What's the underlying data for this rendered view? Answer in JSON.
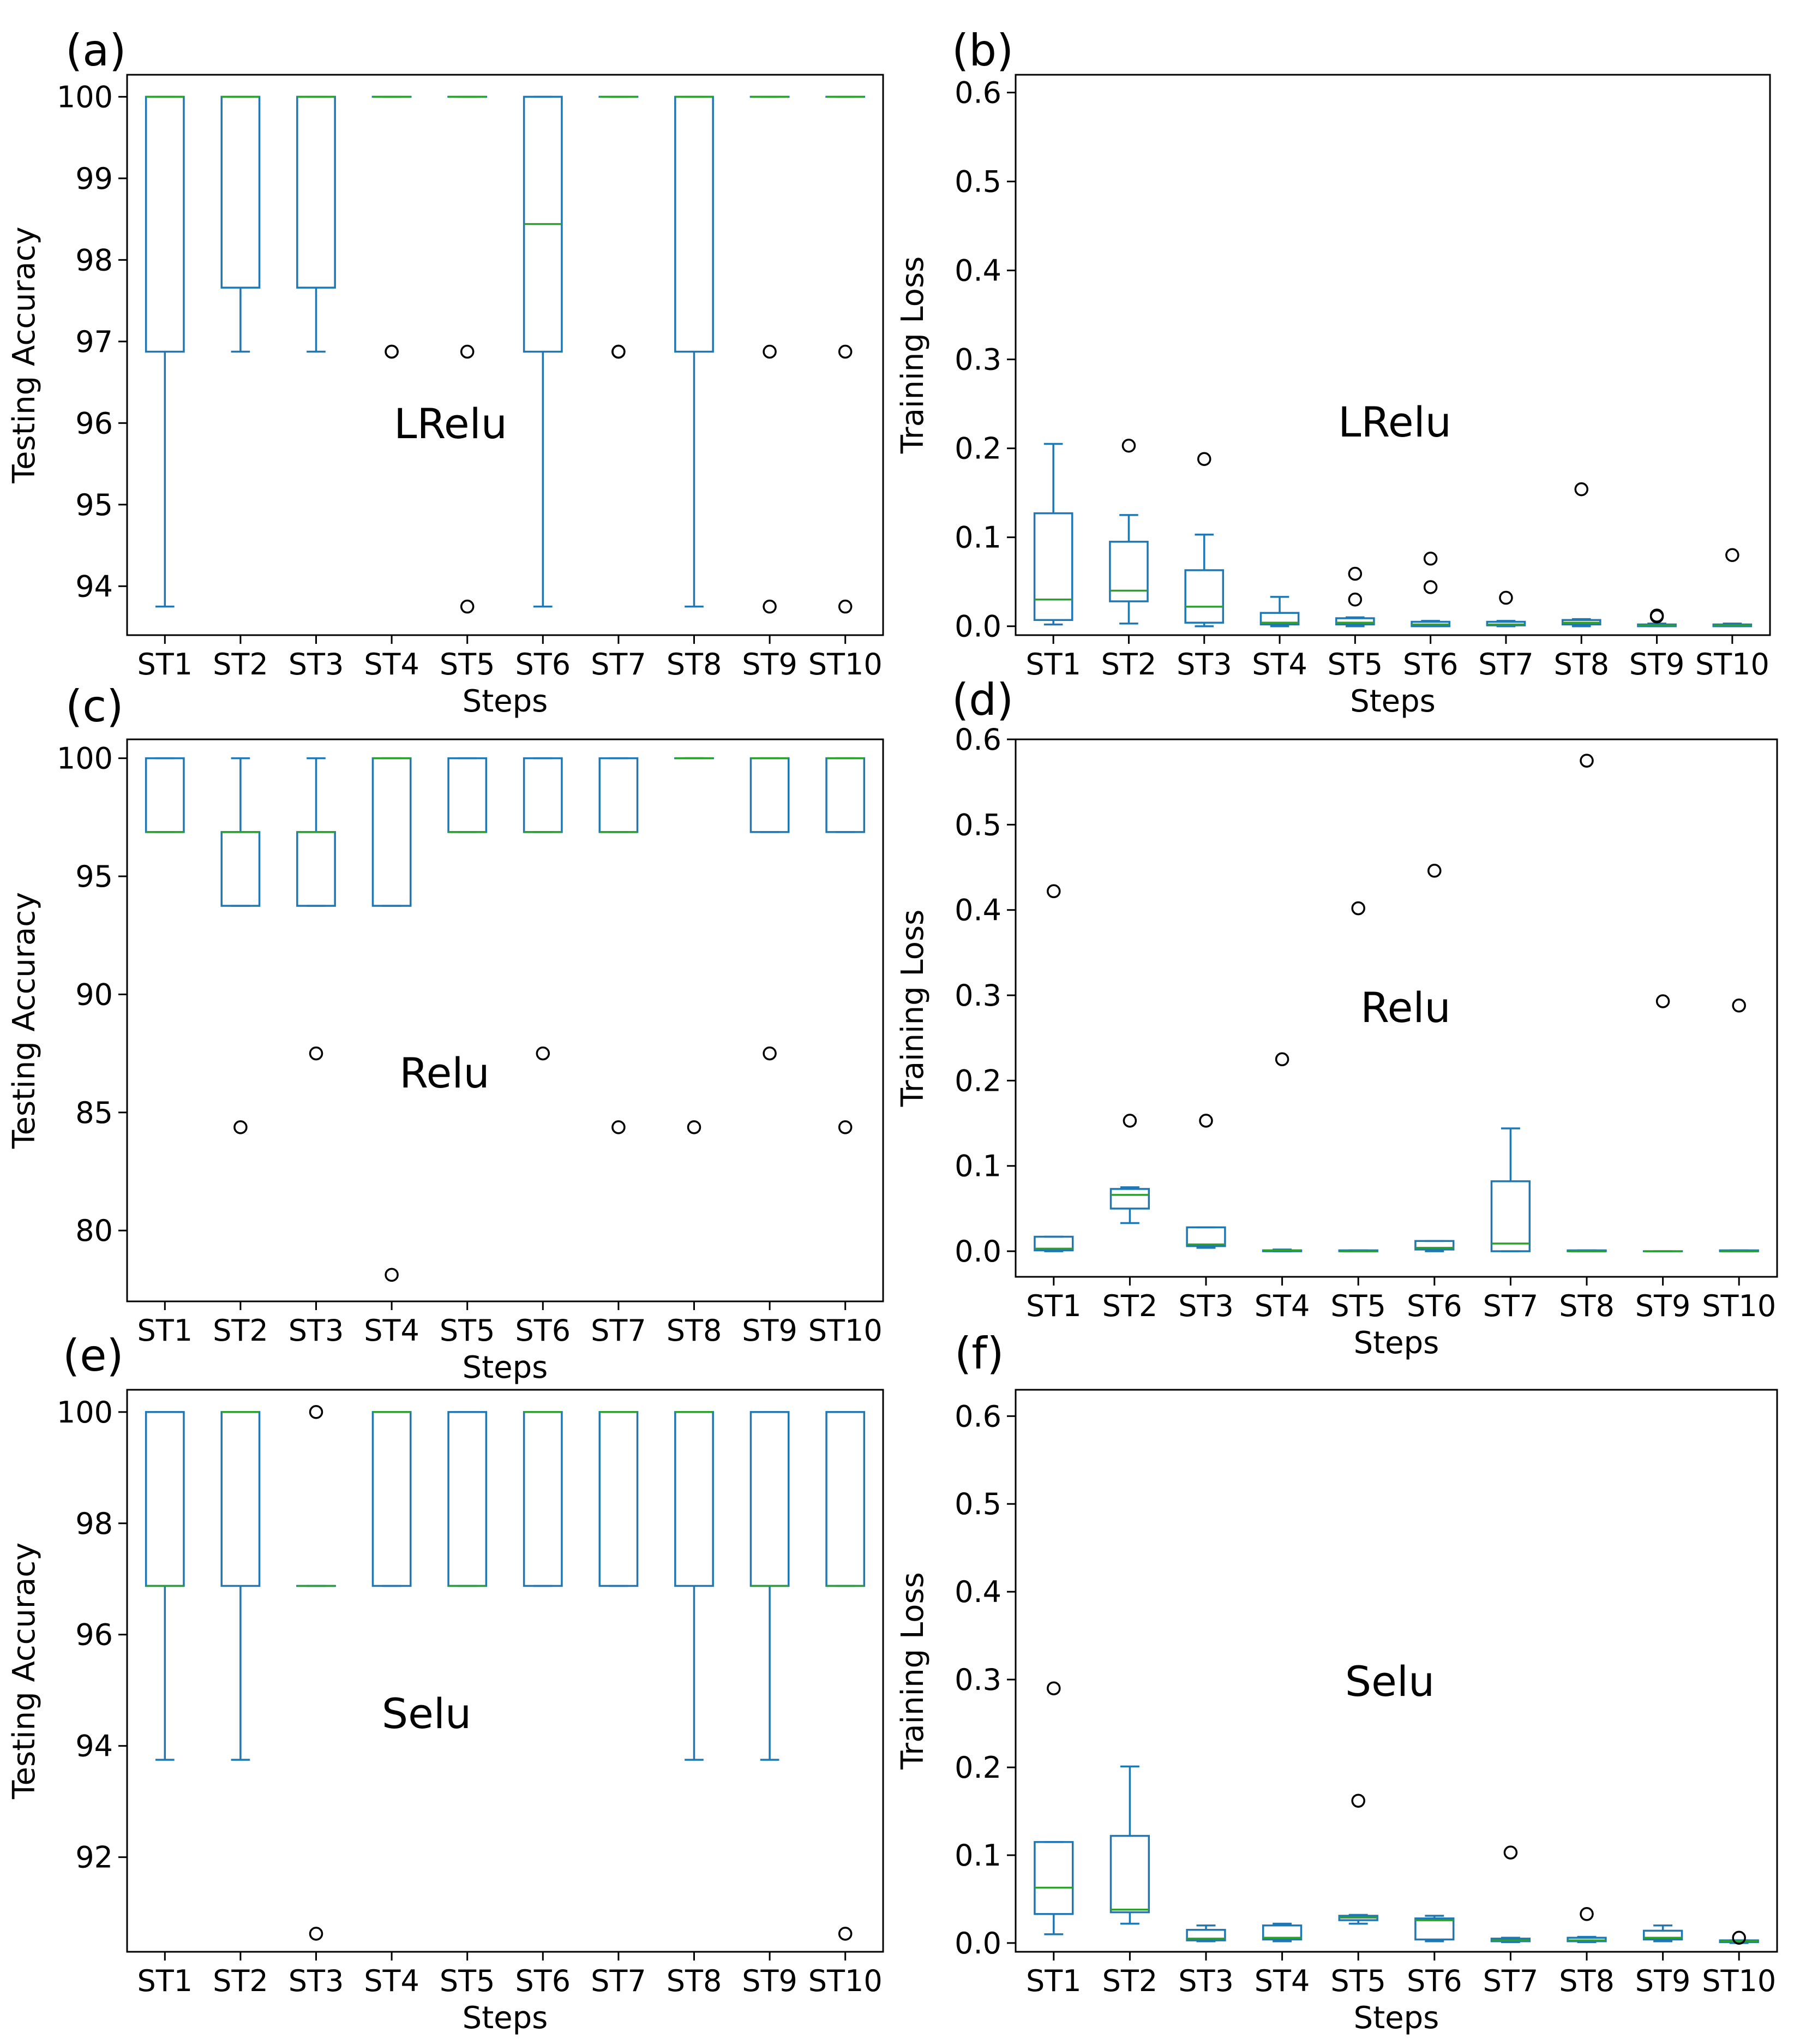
{
  "figure": {
    "common_x_label": "Steps",
    "colors": {
      "box": "#1f77b4",
      "median": "#2ca02c",
      "flier": "#000000",
      "frame": "#000000"
    }
  },
  "chart_data": [
    {
      "panel_label": "(a)",
      "type": "boxplot",
      "annotation": "LRelu",
      "xlabel": "Steps",
      "ylabel": "Testing Accuracy",
      "ylim": [
        93.4,
        100.27
      ],
      "yticks": [
        94,
        95,
        96,
        97,
        98,
        99,
        100
      ],
      "categories": [
        "ST1",
        "ST2",
        "ST3",
        "ST4",
        "ST5",
        "ST6",
        "ST7",
        "ST8",
        "ST9",
        "ST10"
      ],
      "boxes": [
        {
          "whislo": 93.75,
          "q1": 96.875,
          "med": 100,
          "q3": 100,
          "whishi": 100,
          "fliers": []
        },
        {
          "whislo": 96.875,
          "q1": 97.66,
          "med": 100,
          "q3": 100,
          "whishi": 100,
          "fliers": []
        },
        {
          "whislo": 96.875,
          "q1": 97.66,
          "med": 100,
          "q3": 100,
          "whishi": 100,
          "fliers": []
        },
        {
          "whislo": 100,
          "q1": 100,
          "med": 100,
          "q3": 100,
          "whishi": 100,
          "fliers": [
            96.875,
            96.875
          ]
        },
        {
          "whislo": 100,
          "q1": 100,
          "med": 100,
          "q3": 100,
          "whishi": 100,
          "fliers": [
            96.875,
            93.75
          ]
        },
        {
          "whislo": 93.75,
          "q1": 96.875,
          "med": 98.44,
          "q3": 100,
          "whishi": 100,
          "fliers": []
        },
        {
          "whislo": 100,
          "q1": 100,
          "med": 100,
          "q3": 100,
          "whishi": 100,
          "fliers": [
            96.875,
            96.875
          ]
        },
        {
          "whislo": 93.75,
          "q1": 96.875,
          "med": 100,
          "q3": 100,
          "whishi": 100,
          "fliers": []
        },
        {
          "whislo": 100,
          "q1": 100,
          "med": 100,
          "q3": 100,
          "whishi": 100,
          "fliers": [
            96.875,
            93.75
          ]
        },
        {
          "whislo": 100,
          "q1": 100,
          "med": 100,
          "q3": 100,
          "whishi": 100,
          "fliers": [
            96.875,
            93.75
          ]
        }
      ]
    },
    {
      "panel_label": "(b)",
      "type": "boxplot",
      "annotation": "LRelu",
      "xlabel": "Steps",
      "ylabel": "Training Loss",
      "ylim": [
        -0.01,
        0.62
      ],
      "yticks": [
        0.0,
        0.1,
        0.2,
        0.3,
        0.4,
        0.5,
        0.6
      ],
      "categories": [
        "ST1",
        "ST2",
        "ST3",
        "ST4",
        "ST5",
        "ST6",
        "ST7",
        "ST8",
        "ST9",
        "ST10"
      ],
      "boxes": [
        {
          "whislo": 0.002,
          "q1": 0.007,
          "med": 0.03,
          "q3": 0.127,
          "whishi": 0.205,
          "fliers": []
        },
        {
          "whislo": 0.003,
          "q1": 0.028,
          "med": 0.04,
          "q3": 0.095,
          "whishi": 0.125,
          "fliers": [
            0.203
          ]
        },
        {
          "whislo": 0.0,
          "q1": 0.004,
          "med": 0.022,
          "q3": 0.063,
          "whishi": 0.103,
          "fliers": [
            0.188
          ]
        },
        {
          "whislo": 0.0,
          "q1": 0.002,
          "med": 0.004,
          "q3": 0.015,
          "whishi": 0.033,
          "fliers": []
        },
        {
          "whislo": 0.0,
          "q1": 0.002,
          "med": 0.004,
          "q3": 0.009,
          "whishi": 0.01,
          "fliers": [
            0.059,
            0.03
          ]
        },
        {
          "whislo": 0.0,
          "q1": 0.0,
          "med": 0.002,
          "q3": 0.005,
          "whishi": 0.006,
          "fliers": [
            0.076,
            0.044
          ]
        },
        {
          "whislo": 0.0,
          "q1": 0.001,
          "med": 0.002,
          "q3": 0.005,
          "whishi": 0.006,
          "fliers": [
            0.032
          ]
        },
        {
          "whislo": 0.0,
          "q1": 0.002,
          "med": 0.004,
          "q3": 0.007,
          "whishi": 0.008,
          "fliers": [
            0.154
          ]
        },
        {
          "whislo": 0.0,
          "q1": 0.0,
          "med": 0.001,
          "q3": 0.002,
          "whishi": 0.003,
          "fliers": [
            0.012,
            0.011
          ]
        },
        {
          "whislo": 0.0,
          "q1": 0.0,
          "med": 0.001,
          "q3": 0.002,
          "whishi": 0.003,
          "fliers": [
            0.08
          ]
        }
      ]
    },
    {
      "panel_label": "(c)",
      "type": "boxplot",
      "annotation": "Relu",
      "xlabel": "Steps",
      "ylabel": "Testing Accuracy",
      "ylim": [
        77.0,
        100.8
      ],
      "yticks": [
        80,
        85,
        90,
        95,
        100
      ],
      "categories": [
        "ST1",
        "ST2",
        "ST3",
        "ST4",
        "ST5",
        "ST6",
        "ST7",
        "ST8",
        "ST9",
        "ST10"
      ],
      "boxes": [
        {
          "whislo": 96.875,
          "q1": 96.875,
          "med": 96.875,
          "q3": 100,
          "whishi": 100,
          "fliers": []
        },
        {
          "whislo": 93.75,
          "q1": 93.75,
          "med": 96.875,
          "q3": 96.875,
          "whishi": 100,
          "fliers": [
            84.375
          ]
        },
        {
          "whislo": 93.75,
          "q1": 93.75,
          "med": 96.875,
          "q3": 96.875,
          "whishi": 100,
          "fliers": [
            87.5
          ]
        },
        {
          "whislo": 93.75,
          "q1": 93.75,
          "med": 100,
          "q3": 100,
          "whishi": 100,
          "fliers": [
            78.125
          ]
        },
        {
          "whislo": 96.875,
          "q1": 96.875,
          "med": 96.875,
          "q3": 100,
          "whishi": 100,
          "fliers": []
        },
        {
          "whislo": 96.875,
          "q1": 96.875,
          "med": 96.875,
          "q3": 100,
          "whishi": 100,
          "fliers": [
            87.5
          ]
        },
        {
          "whislo": 96.875,
          "q1": 96.875,
          "med": 96.875,
          "q3": 100,
          "whishi": 100,
          "fliers": [
            84.375
          ]
        },
        {
          "whislo": 100,
          "q1": 100,
          "med": 100,
          "q3": 100,
          "whishi": 100,
          "fliers": [
            84.375
          ]
        },
        {
          "whislo": 96.875,
          "q1": 96.875,
          "med": 100,
          "q3": 100,
          "whishi": 100,
          "fliers": [
            87.5
          ]
        },
        {
          "whislo": 96.875,
          "q1": 96.875,
          "med": 100,
          "q3": 100,
          "whishi": 100,
          "fliers": [
            84.375
          ]
        }
      ]
    },
    {
      "panel_label": "(d)",
      "type": "boxplot",
      "annotation": "Relu",
      "xlabel": "Steps",
      "ylabel": "Training Loss",
      "ylim": [
        -0.03,
        0.6
      ],
      "yticks": [
        0.0,
        0.1,
        0.2,
        0.3,
        0.4,
        0.5,
        0.6
      ],
      "categories": [
        "ST1",
        "ST2",
        "ST3",
        "ST4",
        "ST5",
        "ST6",
        "ST7",
        "ST8",
        "ST9",
        "ST10"
      ],
      "boxes": [
        {
          "whislo": 0.0,
          "q1": 0.001,
          "med": 0.003,
          "q3": 0.017,
          "whishi": 0.017,
          "fliers": [
            0.422
          ]
        },
        {
          "whislo": 0.033,
          "q1": 0.05,
          "med": 0.066,
          "q3": 0.073,
          "whishi": 0.075,
          "fliers": [
            0.153
          ]
        },
        {
          "whislo": 0.004,
          "q1": 0.006,
          "med": 0.008,
          "q3": 0.028,
          "whishi": 0.028,
          "fliers": [
            0.153
          ]
        },
        {
          "whislo": 0.0,
          "q1": 0.0,
          "med": 0.001,
          "q3": 0.001,
          "whishi": 0.002,
          "fliers": [
            0.225
          ]
        },
        {
          "whislo": 0.0,
          "q1": 0.0,
          "med": 0.0,
          "q3": 0.001,
          "whishi": 0.001,
          "fliers": [
            0.402
          ]
        },
        {
          "whislo": 0.0,
          "q1": 0.002,
          "med": 0.004,
          "q3": 0.012,
          "whishi": 0.012,
          "fliers": [
            0.446
          ]
        },
        {
          "whislo": 0.0,
          "q1": 0.0,
          "med": 0.009,
          "q3": 0.082,
          "whishi": 0.144,
          "fliers": []
        },
        {
          "whislo": 0.0,
          "q1": 0.0,
          "med": 0.0,
          "q3": 0.001,
          "whishi": 0.001,
          "fliers": [
            0.575
          ]
        },
        {
          "whislo": 0.0,
          "q1": 0.0,
          "med": 0.0,
          "q3": 0.0,
          "whishi": 0.0,
          "fliers": [
            0.293
          ]
        },
        {
          "whislo": 0.0,
          "q1": 0.0,
          "med": 0.0,
          "q3": 0.001,
          "whishi": 0.001,
          "fliers": [
            0.288
          ]
        }
      ]
    },
    {
      "panel_label": "(e)",
      "type": "boxplot",
      "annotation": "Selu",
      "xlabel": "Steps",
      "ylabel": "Testing Accuracy",
      "ylim": [
        90.3,
        100.4
      ],
      "yticks": [
        92,
        94,
        96,
        98,
        100
      ],
      "categories": [
        "ST1",
        "ST2",
        "ST3",
        "ST4",
        "ST5",
        "ST6",
        "ST7",
        "ST8",
        "ST9",
        "ST10"
      ],
      "boxes": [
        {
          "whislo": 93.75,
          "q1": 96.875,
          "med": 96.875,
          "q3": 100,
          "whishi": 100,
          "fliers": []
        },
        {
          "whislo": 93.75,
          "q1": 96.875,
          "med": 100,
          "q3": 100,
          "whishi": 100,
          "fliers": []
        },
        {
          "whislo": 96.875,
          "q1": 96.875,
          "med": 96.875,
          "q3": 96.875,
          "whishi": 96.875,
          "fliers": [
            100,
            90.625
          ]
        },
        {
          "whislo": 96.875,
          "q1": 96.875,
          "med": 100,
          "q3": 100,
          "whishi": 100,
          "fliers": []
        },
        {
          "whislo": 96.875,
          "q1": 96.875,
          "med": 96.875,
          "q3": 100,
          "whishi": 100,
          "fliers": []
        },
        {
          "whislo": 96.875,
          "q1": 96.875,
          "med": 100,
          "q3": 100,
          "whishi": 100,
          "fliers": []
        },
        {
          "whislo": 96.875,
          "q1": 96.875,
          "med": 100,
          "q3": 100,
          "whishi": 100,
          "fliers": []
        },
        {
          "whislo": 93.75,
          "q1": 96.875,
          "med": 100,
          "q3": 100,
          "whishi": 100,
          "fliers": []
        },
        {
          "whislo": 93.75,
          "q1": 96.875,
          "med": 96.875,
          "q3": 100,
          "whishi": 100,
          "fliers": []
        },
        {
          "whislo": 96.875,
          "q1": 96.875,
          "med": 96.875,
          "q3": 100,
          "whishi": 100,
          "fliers": [
            90.625
          ]
        }
      ]
    },
    {
      "panel_label": "(f)",
      "type": "boxplot",
      "annotation": "Selu",
      "xlabel": "Steps",
      "ylabel": "Training Loss",
      "ylim": [
        -0.01,
        0.63
      ],
      "yticks": [
        0.0,
        0.1,
        0.2,
        0.3,
        0.4,
        0.5,
        0.6
      ],
      "categories": [
        "ST1",
        "ST2",
        "ST3",
        "ST4",
        "ST5",
        "ST6",
        "ST7",
        "ST8",
        "ST9",
        "ST10"
      ],
      "boxes": [
        {
          "whislo": 0.01,
          "q1": 0.033,
          "med": 0.063,
          "q3": 0.115,
          "whishi": 0.115,
          "fliers": [
            0.29
          ]
        },
        {
          "whislo": 0.022,
          "q1": 0.035,
          "med": 0.038,
          "q3": 0.122,
          "whishi": 0.201,
          "fliers": []
        },
        {
          "whislo": 0.002,
          "q1": 0.003,
          "med": 0.005,
          "q3": 0.015,
          "whishi": 0.02,
          "fliers": []
        },
        {
          "whislo": 0.002,
          "q1": 0.004,
          "med": 0.006,
          "q3": 0.02,
          "whishi": 0.022,
          "fliers": []
        },
        {
          "whislo": 0.022,
          "q1": 0.026,
          "med": 0.029,
          "q3": 0.031,
          "whishi": 0.032,
          "fliers": [
            0.162
          ]
        },
        {
          "whislo": 0.002,
          "q1": 0.004,
          "med": 0.026,
          "q3": 0.028,
          "whishi": 0.031,
          "fliers": []
        },
        {
          "whislo": 0.001,
          "q1": 0.002,
          "med": 0.003,
          "q3": 0.005,
          "whishi": 0.006,
          "fliers": [
            0.103
          ]
        },
        {
          "whislo": 0.001,
          "q1": 0.002,
          "med": 0.003,
          "q3": 0.006,
          "whishi": 0.007,
          "fliers": [
            0.033
          ]
        },
        {
          "whislo": 0.002,
          "q1": 0.004,
          "med": 0.006,
          "q3": 0.014,
          "whishi": 0.02,
          "fliers": []
        },
        {
          "whislo": 0.0,
          "q1": 0.001,
          "med": 0.002,
          "q3": 0.003,
          "whishi": 0.003,
          "fliers": [
            0.006
          ]
        }
      ]
    }
  ]
}
